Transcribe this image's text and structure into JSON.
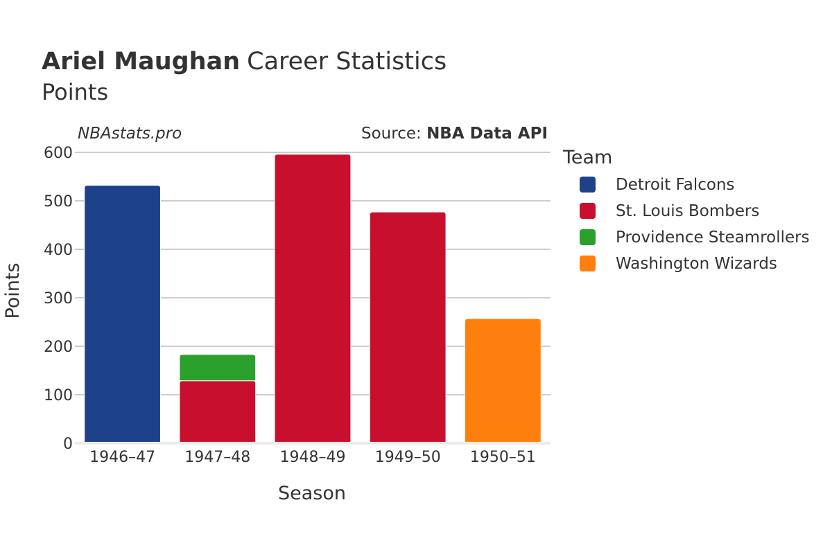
{
  "header": {
    "title_name": "Ariel Maughan",
    "title_rest": "Career Statistics",
    "subtitle": "Points",
    "watermark": "NBAstats.pro",
    "source_prefix": "Source: ",
    "source_name": "NBA Data API"
  },
  "legend": {
    "title": "Team"
  },
  "chart_data": {
    "type": "bar",
    "stacked": true,
    "title": "Ariel Maughan Career Statistics",
    "subtitle": "Points",
    "xlabel": "Season",
    "ylabel": "Points",
    "categories": [
      "1946–47",
      "1947–48",
      "1948–49",
      "1949–50",
      "1950–51"
    ],
    "ylim": [
      0,
      600
    ],
    "yticks": [
      0,
      100,
      200,
      300,
      400,
      500,
      600
    ],
    "grid": true,
    "legend_position": "right",
    "series": [
      {
        "name": "Detroit Falcons",
        "color": "#1d428a",
        "values": [
          532,
          null,
          null,
          null,
          null
        ]
      },
      {
        "name": "St. Louis Bombers",
        "color": "#c8102e",
        "values": [
          null,
          129,
          596,
          477,
          null
        ]
      },
      {
        "name": "Providence Steamrollers",
        "color": "#2ca02c",
        "values": [
          null,
          54,
          null,
          null,
          null
        ]
      },
      {
        "name": "Washington Wizards",
        "color": "#ff7f0e",
        "values": [
          null,
          null,
          null,
          null,
          257
        ]
      }
    ]
  }
}
